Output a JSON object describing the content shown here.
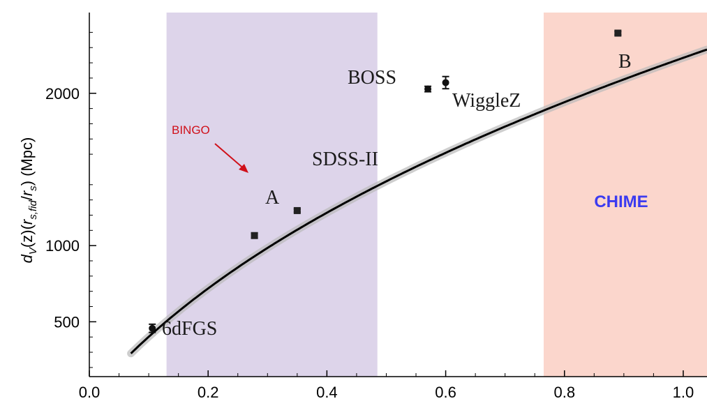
{
  "chart_data": {
    "type": "scatter",
    "ylabel_parts": {
      "d": "d",
      "v_sub": "V",
      "z": "(z)(",
      "r1": "r",
      "sfid_sub": "s,fid",
      "slash": "/",
      "r2": "r",
      "s_sub": "s",
      "unit": ") (Mpc)"
    },
    "xlim": [
      0.0,
      1.04
    ],
    "ylim": [
      140,
      2530
    ],
    "x_ticks": [
      0.0,
      0.2,
      0.4,
      0.6,
      0.8,
      1.0
    ],
    "x_tick_labels": [
      "0.0",
      "0.2",
      "0.4",
      "0.6",
      "0.8",
      "1.0"
    ],
    "y_ticks": [
      500,
      1000,
      2000
    ],
    "y_tick_labels": [
      "500",
      "1000",
      "2000"
    ],
    "points": [
      {
        "name": "6dFGS",
        "x": 0.106,
        "y": 457,
        "err": 27,
        "marker": "circle"
      },
      {
        "name": "A",
        "x": 0.278,
        "y": 1066,
        "err": 16,
        "marker": "square"
      },
      {
        "name": "SDSS-II",
        "x": 0.35,
        "y": 1230,
        "err": 10,
        "marker": "square"
      },
      {
        "name": "BOSS",
        "x": 0.57,
        "y": 2028,
        "err": 18,
        "marker": "circle"
      },
      {
        "name": "WiggleZ",
        "x": 0.6,
        "y": 2070,
        "err": 40,
        "marker": "circle"
      },
      {
        "name": "B",
        "x": 0.89,
        "y": 2395,
        "err": 12,
        "marker": "square"
      }
    ],
    "bands": [
      {
        "name": "BINGO",
        "x_range": [
          0.13,
          0.485
        ],
        "color": "#ddd4ea"
      },
      {
        "name": "CHIME",
        "x_range": [
          0.765,
          1.04
        ],
        "color": "#fbd6cc"
      }
    ],
    "band_labels": {
      "bingo": "BINGO",
      "chime": "CHIME"
    },
    "curve_color": "#000000"
  }
}
